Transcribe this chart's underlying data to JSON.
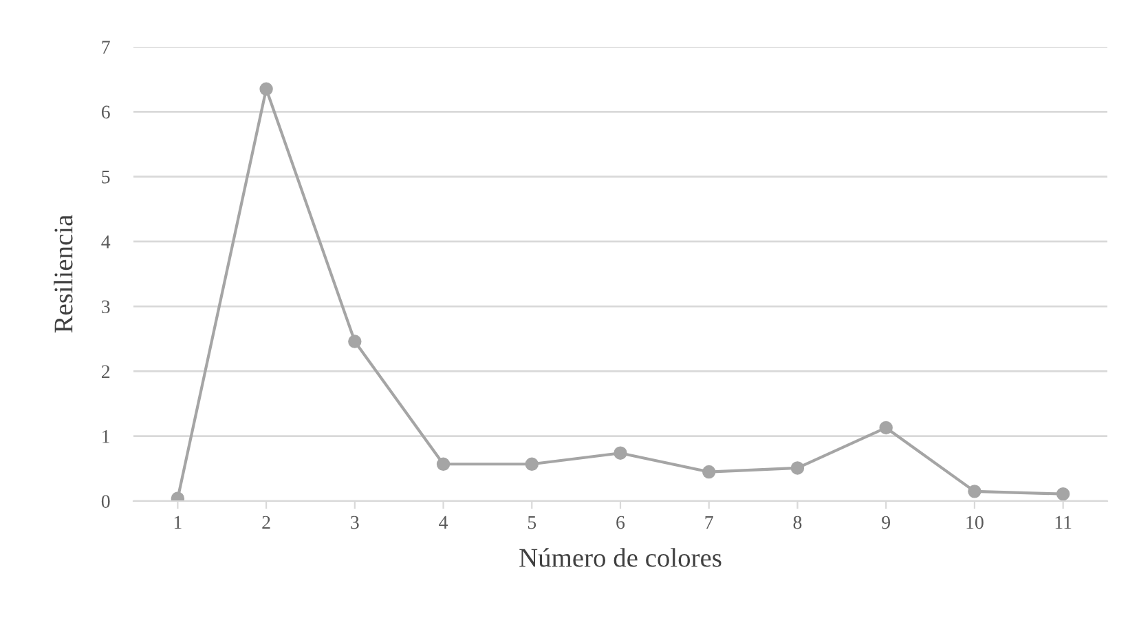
{
  "chart_data": {
    "type": "line",
    "xlabel": "Número de colores",
    "ylabel": "Resiliencia",
    "categories": [
      "1",
      "2",
      "3",
      "4",
      "5",
      "6",
      "7",
      "8",
      "9",
      "10",
      "11"
    ],
    "series": [
      {
        "color": "#a5a5a5",
        "values": [
          0.04,
          6.35,
          2.46,
          0.57,
          0.57,
          0.74,
          0.45,
          0.51,
          1.13,
          0.15,
          0.11
        ]
      }
    ],
    "ylim": [
      0,
      7
    ],
    "yticks": [
      0,
      1,
      2,
      3,
      4,
      5,
      6,
      7
    ],
    "grid": "y",
    "marker": "circle",
    "line_style": "solid",
    "legend": false
  }
}
